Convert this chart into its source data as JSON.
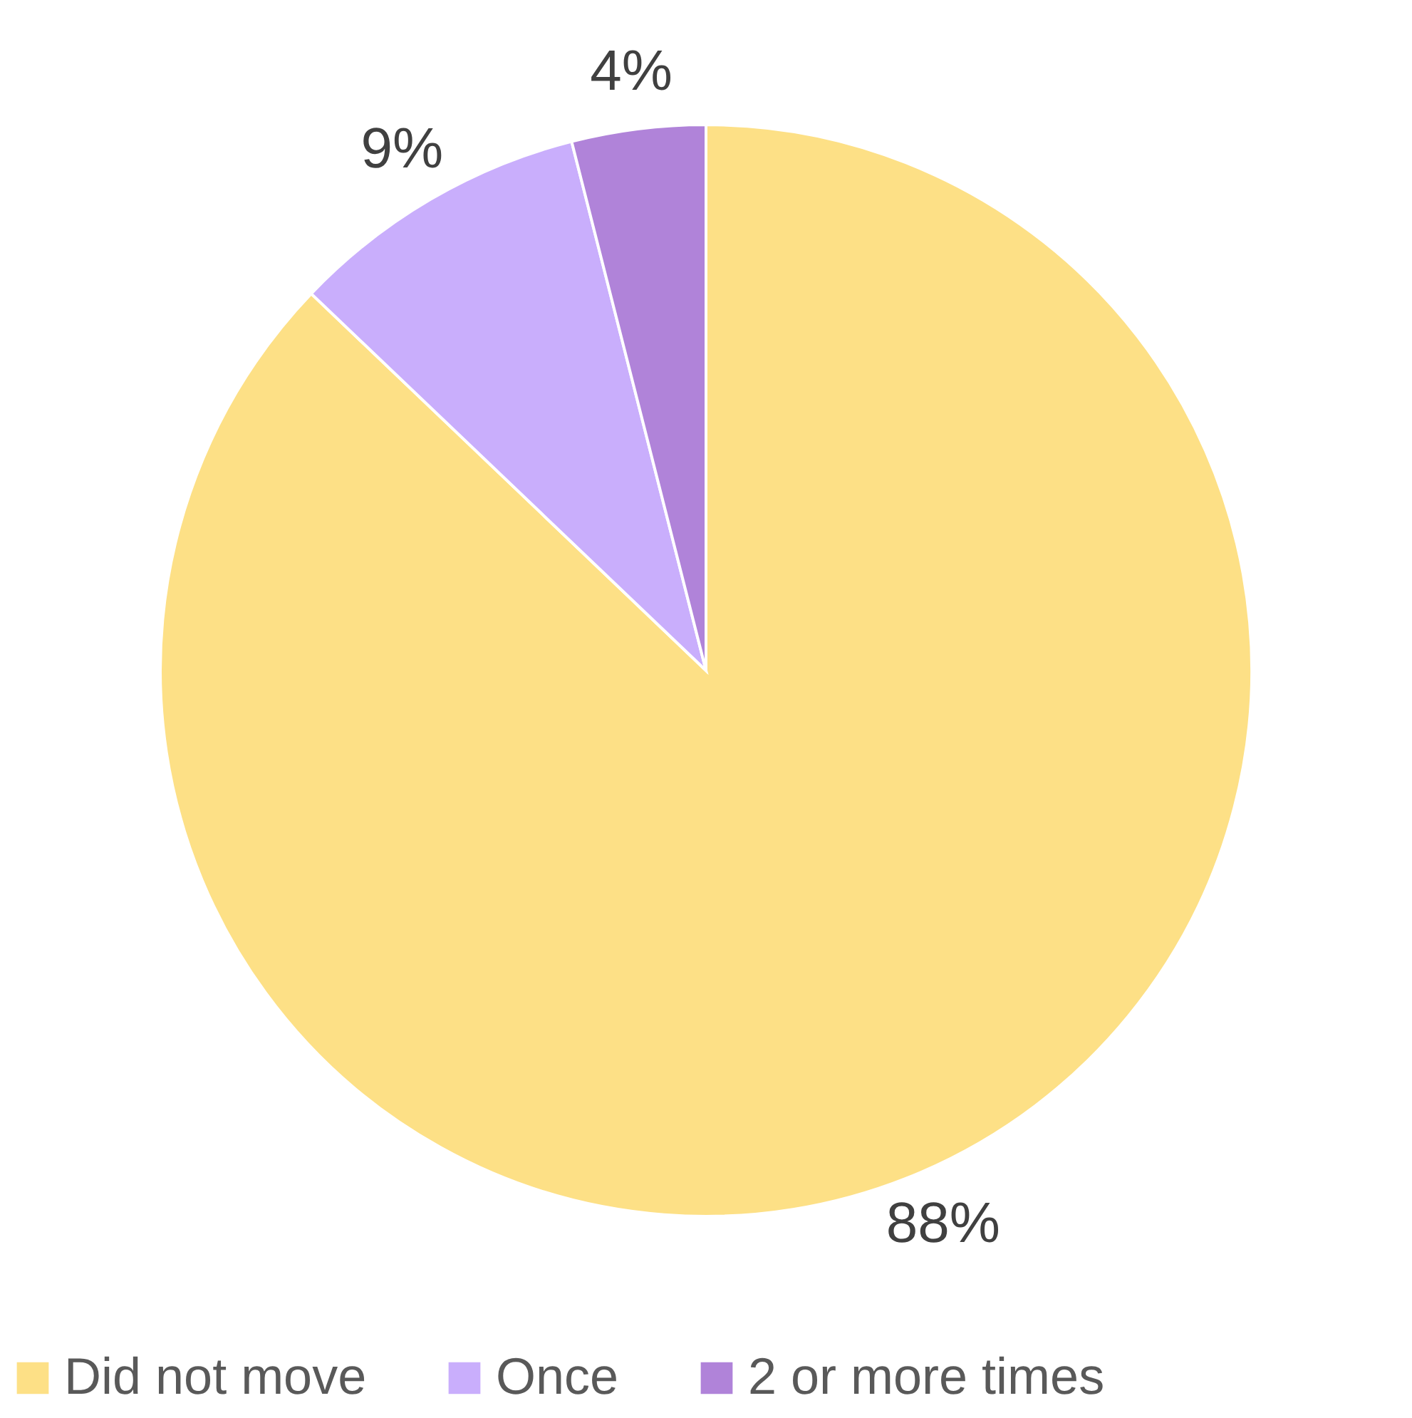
{
  "chart_data": {
    "type": "pie",
    "categories": [
      "Did not move",
      "Once",
      "2 or more times"
    ],
    "values": [
      88,
      9,
      4
    ],
    "colors": [
      "#fde086",
      "#c9aefc",
      "#b083d9"
    ],
    "value_labels": [
      "88%",
      "9%",
      "4%"
    ],
    "legend": "bottom"
  }
}
